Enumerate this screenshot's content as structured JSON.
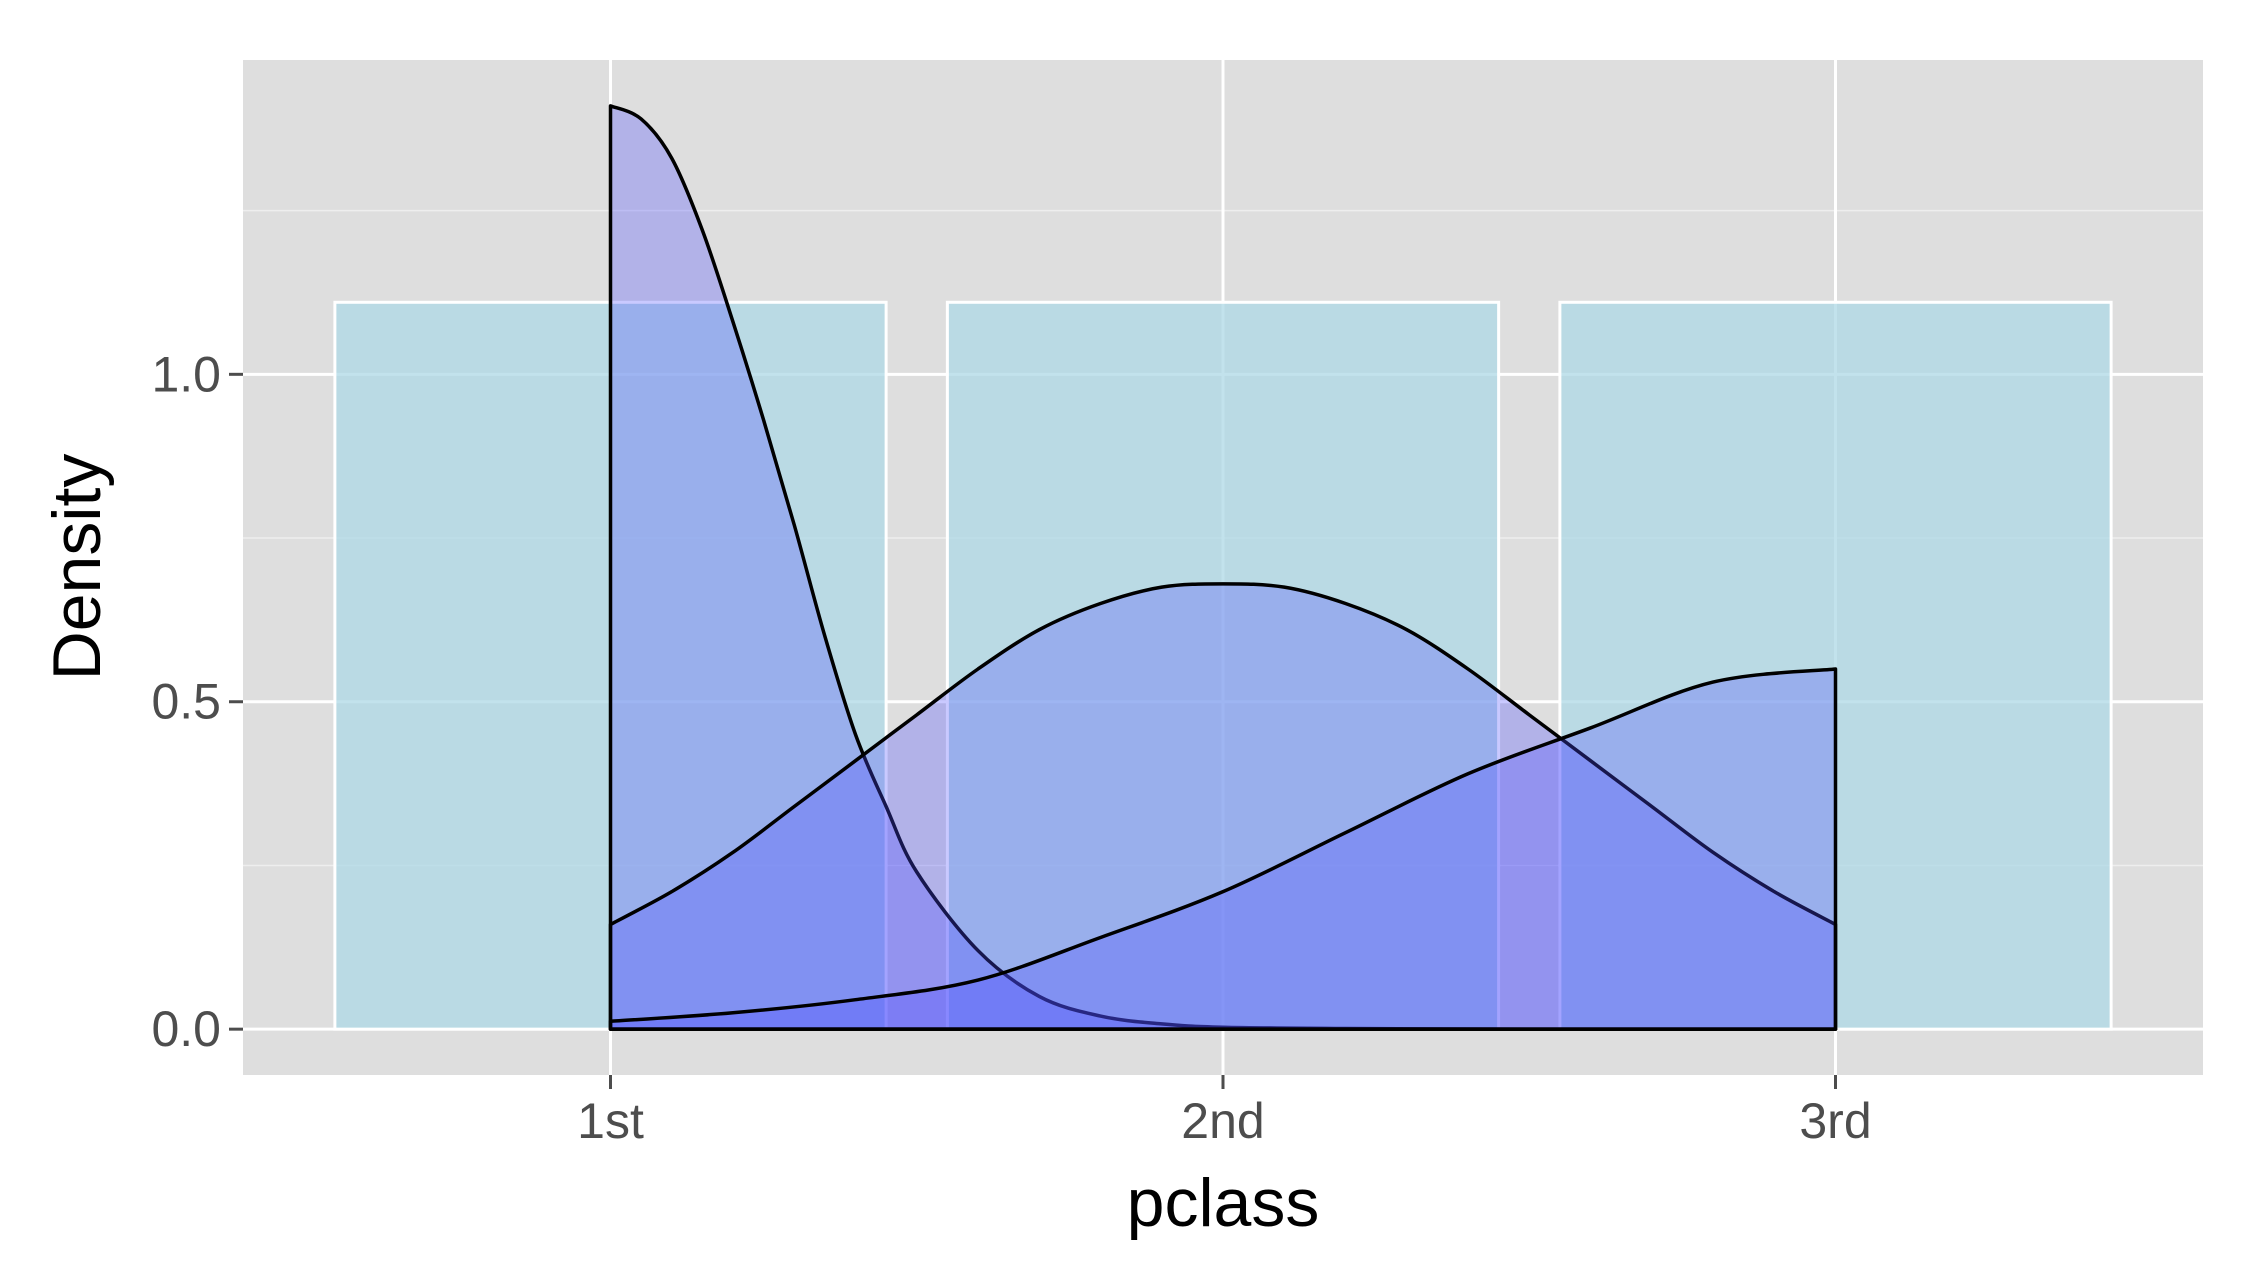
{
  "chart_data": {
    "type": "area",
    "title": "",
    "xlabel": "pclass",
    "ylabel": "Density",
    "categories": [
      "1st",
      "2nd",
      "3rd"
    ],
    "x_positions": [
      1,
      2,
      3
    ],
    "xlim": [
      0.4,
      3.6
    ],
    "ylim": [
      -0.07,
      1.48
    ],
    "yticks": [
      0.0,
      0.5,
      1.0
    ],
    "ytick_labels": [
      "0.0",
      "0.5",
      "1.0"
    ],
    "y_minor_ticks": [
      0.25,
      0.75,
      1.25
    ],
    "grid": true,
    "legend": "none",
    "histogram": {
      "bars": [
        {
          "category": "1st",
          "x_start": 0.55,
          "x_end": 1.45,
          "density": 1.11
        },
        {
          "category": "2nd",
          "x_start": 1.55,
          "x_end": 2.45,
          "density": 1.11
        },
        {
          "category": "3rd",
          "x_start": 2.55,
          "x_end": 3.45,
          "density": 1.11
        }
      ]
    },
    "series": [
      {
        "x": [
          1.0,
          1.05,
          1.1,
          1.15,
          1.2,
          1.25,
          1.3,
          1.35,
          1.4,
          1.45,
          1.5,
          1.6,
          1.7,
          1.8,
          1.9,
          2.0,
          2.2,
          2.5,
          3.0
        ],
        "values": [
          1.41,
          1.39,
          1.33,
          1.22,
          1.08,
          0.93,
          0.77,
          0.6,
          0.45,
          0.34,
          0.24,
          0.12,
          0.05,
          0.02,
          0.008,
          0.003,
          0.001,
          0.0,
          0.0
        ]
      },
      {
        "x": [
          1.0,
          1.1,
          1.2,
          1.3,
          1.4,
          1.5,
          1.6,
          1.7,
          1.8,
          1.9,
          2.0,
          2.1,
          2.2,
          2.3,
          2.4,
          2.5,
          2.6,
          2.7,
          2.8,
          2.9,
          3.0
        ],
        "values": [
          0.16,
          0.21,
          0.27,
          0.34,
          0.41,
          0.48,
          0.55,
          0.61,
          0.65,
          0.675,
          0.68,
          0.675,
          0.65,
          0.61,
          0.55,
          0.48,
          0.41,
          0.34,
          0.27,
          0.21,
          0.16
        ]
      },
      {
        "x": [
          1.0,
          1.2,
          1.4,
          1.6,
          1.8,
          2.0,
          2.2,
          2.4,
          2.6,
          2.8,
          3.0
        ],
        "values": [
          0.012,
          0.025,
          0.045,
          0.075,
          0.14,
          0.21,
          0.3,
          0.39,
          0.46,
          0.53,
          0.55
        ]
      }
    ],
    "colors": {
      "panel_background": "#dedede",
      "grid_major": "#ffffff",
      "grid_minor": "#eeeeee",
      "histogram_fill": "#add8e6",
      "density_fill": "#4b4bff",
      "density_line": "#000000"
    }
  }
}
